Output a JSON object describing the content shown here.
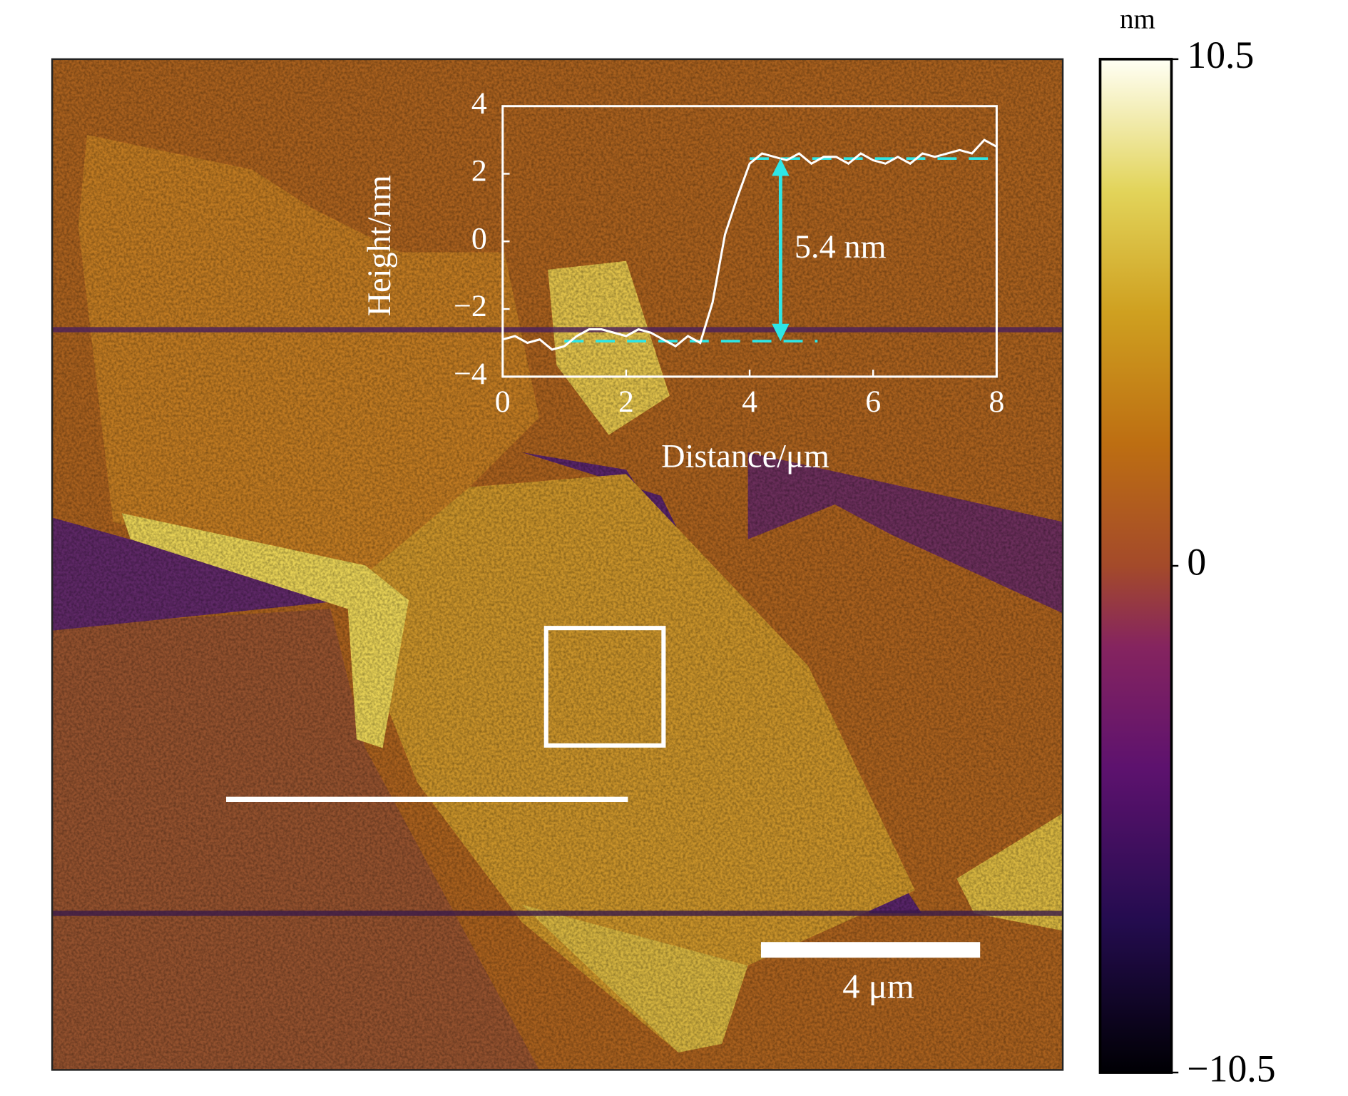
{
  "chart_data": {
    "type": "line",
    "xlabel": "Distance/μm",
    "ylabel": "Height/nm",
    "x": [
      0,
      0.2,
      0.4,
      0.6,
      0.8,
      1.0,
      1.2,
      1.4,
      1.6,
      1.8,
      2.0,
      2.2,
      2.4,
      2.6,
      2.8,
      3.0,
      3.2,
      3.4,
      3.6,
      3.8,
      4.0,
      4.2,
      4.4,
      4.6,
      4.8,
      5.0,
      5.2,
      5.4,
      5.6,
      5.8,
      6.0,
      6.2,
      6.4,
      6.6,
      6.8,
      7.0,
      7.2,
      7.4,
      7.6,
      7.8,
      8.0
    ],
    "values": [
      -2.9,
      -2.8,
      -3.0,
      -2.9,
      -3.2,
      -3.1,
      -2.8,
      -2.6,
      -2.6,
      -2.7,
      -2.8,
      -2.6,
      -2.7,
      -2.9,
      -3.1,
      -2.8,
      -3.0,
      -1.8,
      0.2,
      1.3,
      2.3,
      2.6,
      2.5,
      2.4,
      2.6,
      2.3,
      2.5,
      2.5,
      2.3,
      2.6,
      2.4,
      2.3,
      2.5,
      2.3,
      2.6,
      2.5,
      2.6,
      2.7,
      2.6,
      3.0,
      2.8
    ],
    "color": "#ffffff",
    "xlim": [
      0,
      8
    ],
    "xticks": [
      0,
      2,
      4,
      6,
      8
    ],
    "ylim": [
      -4,
      4
    ],
    "yticks": [
      {
        "value": -4,
        "label": "−4"
      },
      {
        "value": -2,
        "label": "−2"
      },
      0,
      2,
      4
    ],
    "reference_lines": [
      {
        "y": -2.95,
        "x": [
          1.0,
          5.1
        ]
      },
      {
        "y": 2.45,
        "x": [
          4.0,
          7.9
        ]
      }
    ],
    "reference_color": "#2ee6e6",
    "annotation": {
      "text": "5.4 nm",
      "x": 4.5
    }
  },
  "colorbar": {
    "label": "nm",
    "lim": [
      -10.5,
      10.5
    ],
    "ticks": [
      10.5,
      0,
      {
        "value": -10.5,
        "label": "−10.5"
      }
    ]
  },
  "scale_bar": {
    "label": "4 μm"
  }
}
